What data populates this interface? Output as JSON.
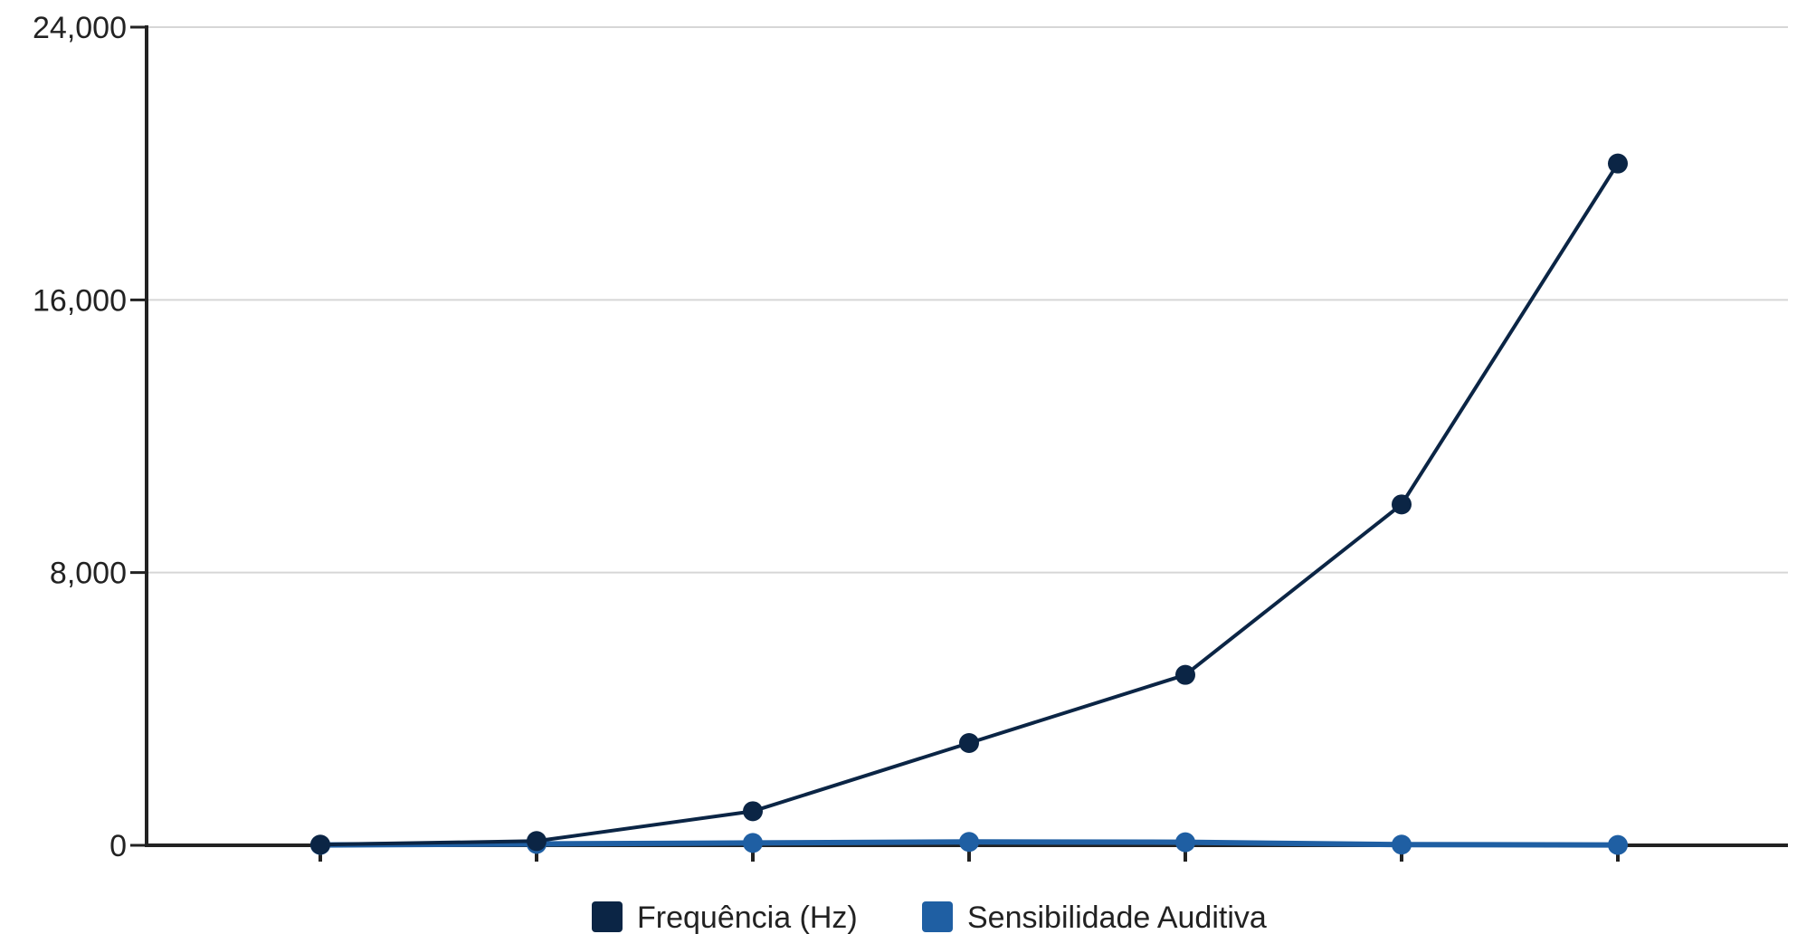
{
  "chart_data": {
    "type": "line",
    "title": "",
    "xlabel": "",
    "ylabel": "",
    "categories": [
      "",
      "",
      "",
      "",
      "",
      "",
      ""
    ],
    "ylim": [
      0,
      24000
    ],
    "yticks": [
      0,
      8000,
      16000,
      24000
    ],
    "ytick_labels": [
      "0",
      "8,000",
      "16,000",
      "24,000"
    ],
    "grid": true,
    "legend_position": "bottom",
    "series": [
      {
        "name": "Frequência (Hz)",
        "color": "#0b2545",
        "values": [
          20,
          125,
          1000,
          3000,
          5000,
          10000,
          20000
        ]
      },
      {
        "name": "Sensibilidade Auditiva",
        "color": "#1f5fa3",
        "values": [
          10,
          40,
          70,
          100,
          90,
          20,
          10
        ]
      }
    ]
  }
}
